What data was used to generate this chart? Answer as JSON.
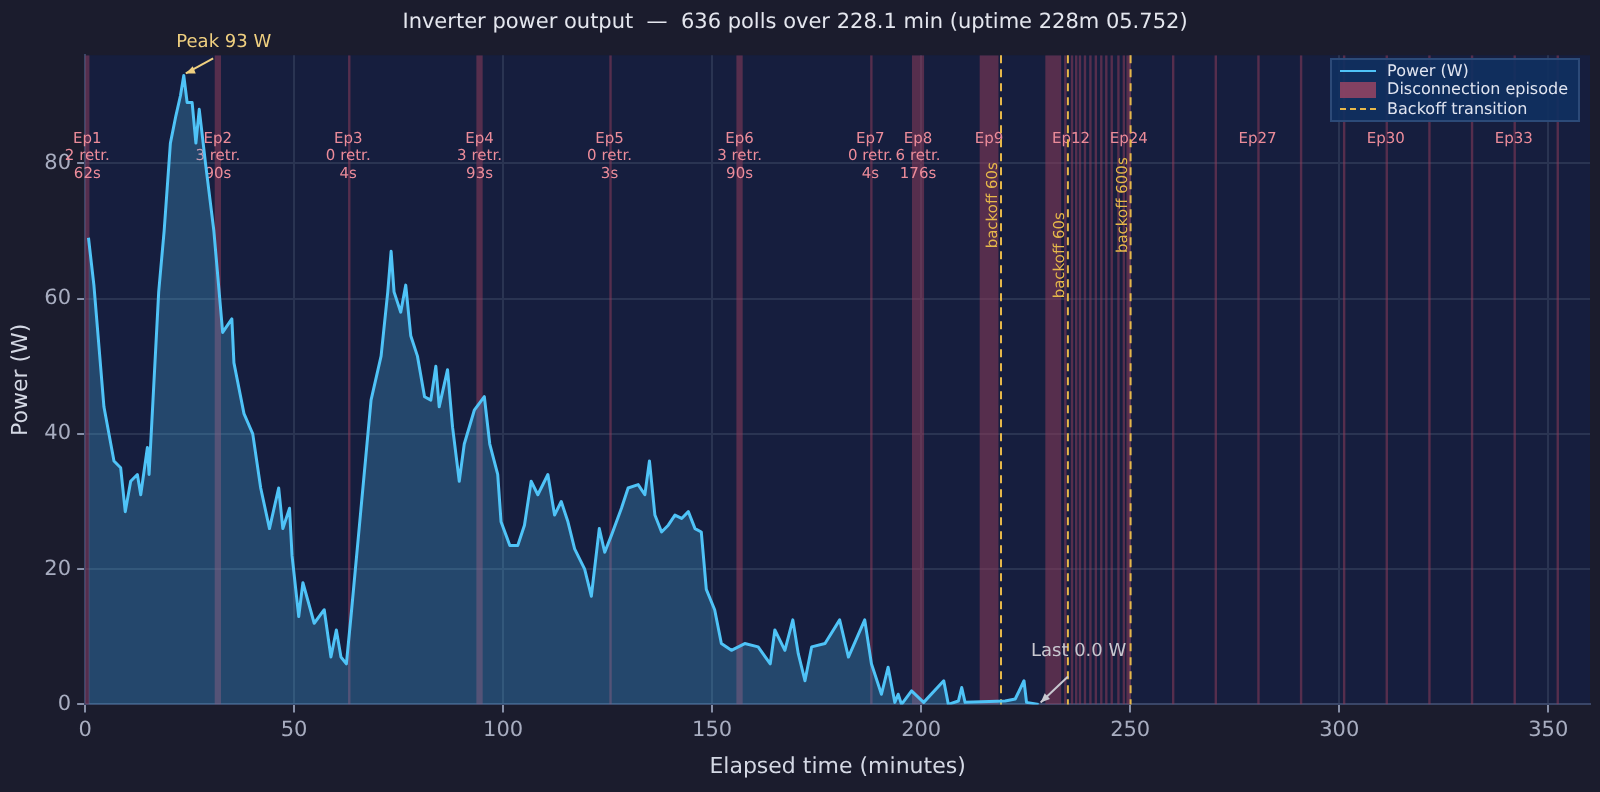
{
  "chart_data": {
    "type": "area",
    "title": "Inverter power output  —  636 polls over 228.1 min (uptime 228m 05.752)",
    "xlabel": "Elapsed time (minutes)",
    "ylabel": "Power (W)",
    "series": [
      {
        "name": "Power (W)",
        "color": "#4fc3f7",
        "x": [
          0.8,
          2.1,
          4.5,
          6.9,
          8.5,
          9.6,
          10.9,
          12.5,
          13.3,
          14.9,
          15.3,
          17.6,
          18.9,
          20.4,
          21.7,
          22.8,
          23.6,
          24.4,
          25.6,
          26.5,
          27.3,
          28.8,
          30.8,
          32.9,
          35.1,
          35.6,
          38.0,
          40.1,
          42.0,
          44.1,
          46.3,
          47.3,
          48.9,
          49.5,
          51.1,
          52.1,
          54.8,
          57.2,
          58.8,
          60.1,
          61.2,
          62.5,
          63.6,
          66.0,
          68.4,
          70.8,
          72.4,
          73.2,
          73.9,
          75.5,
          76.7,
          77.9,
          79.5,
          81.2,
          82.7,
          83.9,
          84.7,
          86.7,
          87.9,
          89.5,
          90.7,
          93.1,
          95.5,
          96.8,
          98.7,
          99.5,
          101.6,
          103.5,
          105.1,
          106.7,
          108.3,
          110.7,
          112.3,
          113.9,
          115.5,
          117.1,
          119.5,
          121.1,
          123.0,
          124.3,
          125.9,
          128.3,
          129.9,
          132.3,
          133.9,
          135.0,
          136.3,
          137.9,
          139.5,
          141.1,
          142.7,
          144.3,
          145.9,
          147.4,
          148.6,
          150.6,
          152.2,
          154.6,
          157.8,
          161.0,
          163.9,
          165.0,
          167.4,
          169.3,
          170.6,
          172.2,
          173.8,
          177.0,
          180.5,
          182.6,
          186.5,
          188.1,
          190.5,
          192.1,
          193.7,
          194.5,
          195.3,
          197.7,
          200.6,
          205.4,
          206.5,
          208.9,
          209.7,
          210.5,
          220.1,
          222.5,
          224.6,
          225.2,
          228.1
        ],
        "values": [
          69,
          62,
          44,
          36,
          35,
          28.5,
          33,
          34,
          31,
          38,
          34,
          61,
          70,
          83,
          87,
          90,
          93,
          89,
          89,
          83,
          88,
          80,
          70,
          55,
          57,
          50.5,
          43,
          40,
          32,
          26,
          32,
          26,
          29,
          22,
          13,
          18,
          12,
          14,
          7,
          11,
          7,
          6,
          13,
          29,
          45,
          51.5,
          61,
          67,
          61,
          58,
          62,
          54.5,
          51.5,
          45.5,
          45,
          50,
          44,
          49.5,
          41,
          33,
          38.5,
          43.5,
          45.5,
          38.5,
          34,
          27,
          23.5,
          23.5,
          26.5,
          33,
          31,
          34,
          28,
          30,
          27,
          23,
          20,
          16,
          26,
          22.5,
          25,
          29,
          32,
          32.5,
          31,
          36,
          28,
          25.5,
          26.5,
          28,
          27.5,
          28.5,
          26,
          25.5,
          17,
          14,
          9,
          8,
          9,
          8.5,
          6,
          11,
          8,
          12.5,
          7.5,
          3.5,
          8.5,
          9,
          12.5,
          7,
          12.5,
          6,
          1.5,
          5.5,
          0.3,
          1.5,
          0,
          2,
          0.3,
          3.5,
          0,
          0.5,
          2.5,
          0.3,
          0.5,
          0.8,
          3.5,
          0.3,
          0
        ]
      }
    ],
    "xlim": [
      0,
      360
    ],
    "ylim": [
      0,
      96
    ],
    "xticks": [
      0,
      50,
      100,
      150,
      200,
      250,
      300,
      350
    ],
    "yticks": [
      0,
      20,
      40,
      60,
      80
    ],
    "grid": true,
    "legend": "top right",
    "marker": "none",
    "line_style": "solid",
    "bands": [
      {
        "axis": "x",
        "from": 0,
        "to": 1.03,
        "label": "Ep1\n2 retr.\n62s"
      },
      {
        "axis": "x",
        "from": 31,
        "to": 32.5,
        "label": "Ep2\n3 retr.\n90s"
      },
      {
        "axis": "x",
        "from": 62.9,
        "to": 63,
        "label": "Ep3\n0 retr.\n4s"
      },
      {
        "axis": "x",
        "from": 93.6,
        "to": 95.1,
        "label": "Ep4\n3 retr.\n93s"
      },
      {
        "axis": "x",
        "from": 125.4,
        "to": 125.5,
        "label": "Ep5\n0 retr.\n3s"
      },
      {
        "axis": "x",
        "from": 155.8,
        "to": 157.3,
        "label": "Ep6\n3 retr.\n90s"
      },
      {
        "axis": "x",
        "from": 187.8,
        "to": 187.9,
        "label": "Ep7\n0 retr.\n4s"
      },
      {
        "axis": "x",
        "from": 197.8,
        "to": 200.7,
        "label": "Ep8\n6 retr.\n176s"
      },
      {
        "axis": "x",
        "from": 214,
        "to": 218.5,
        "label": "Ep9"
      },
      {
        "axis": "x",
        "from": 229.7,
        "to": 233.5
      },
      {
        "axis": "x",
        "from": 234.2,
        "to": 234.3
      },
      {
        "axis": "x",
        "from": 235.8,
        "to": 235.9,
        "label": "Ep12"
      },
      {
        "axis": "x",
        "from": 236.8,
        "to": 236.9
      },
      {
        "axis": "x",
        "from": 237.7,
        "to": 237.8
      },
      {
        "axis": "x",
        "from": 238.9,
        "to": 239
      },
      {
        "axis": "x",
        "from": 240.2,
        "to": 240.3
      },
      {
        "axis": "x",
        "from": 241.5,
        "to": 241.6
      },
      {
        "axis": "x",
        "from": 242.8,
        "to": 242.9
      },
      {
        "axis": "x",
        "from": 244,
        "to": 244.1
      },
      {
        "axis": "x",
        "from": 245.3,
        "to": 245.4
      },
      {
        "axis": "x",
        "from": 246.9,
        "to": 247
      },
      {
        "axis": "x",
        "from": 248.2,
        "to": 248.3
      },
      {
        "axis": "x",
        "from": 249.1,
        "to": 249.2
      },
      {
        "axis": "x",
        "from": 249.6,
        "to": 249.7,
        "label": "Ep24"
      },
      {
        "axis": "x",
        "from": 260,
        "to": 260.1
      },
      {
        "axis": "x",
        "from": 270.2,
        "to": 270.3
      },
      {
        "axis": "x",
        "from": 280.4,
        "to": 280.5,
        "label": "Ep27"
      },
      {
        "axis": "x",
        "from": 290.6,
        "to": 290.7
      },
      {
        "axis": "x",
        "from": 300.9,
        "to": 301
      },
      {
        "axis": "x",
        "from": 311.1,
        "to": 311.2,
        "label": "Ep30"
      },
      {
        "axis": "x",
        "from": 321.3,
        "to": 321.4
      },
      {
        "axis": "x",
        "from": 331.5,
        "to": 331.6
      },
      {
        "axis": "x",
        "from": 341.7,
        "to": 341.8,
        "label": "Ep33"
      },
      {
        "axis": "x",
        "from": 352,
        "to": 352.1
      }
    ],
    "ref_lines": [
      {
        "axis": "x",
        "value": 219.1,
        "label": "backoff 60s",
        "color": "#e6b84a",
        "line_style": "dashed"
      },
      {
        "axis": "x",
        "value": 235.1,
        "label": "backoff 60s",
        "color": "#e6b84a",
        "line_style": "dashed"
      },
      {
        "axis": "x",
        "value": 250.1,
        "label": "backoff 600s",
        "color": "#e6b84a",
        "line_style": "dashed"
      }
    ],
    "annotations": [
      {
        "text": "Peak 93 W",
        "x": 23.6,
        "y": 93
      },
      {
        "text": "Last 0.0 W",
        "x": 228.1,
        "y": 0
      },
      "Disconnection episode",
      "Backoff transition"
    ]
  }
}
